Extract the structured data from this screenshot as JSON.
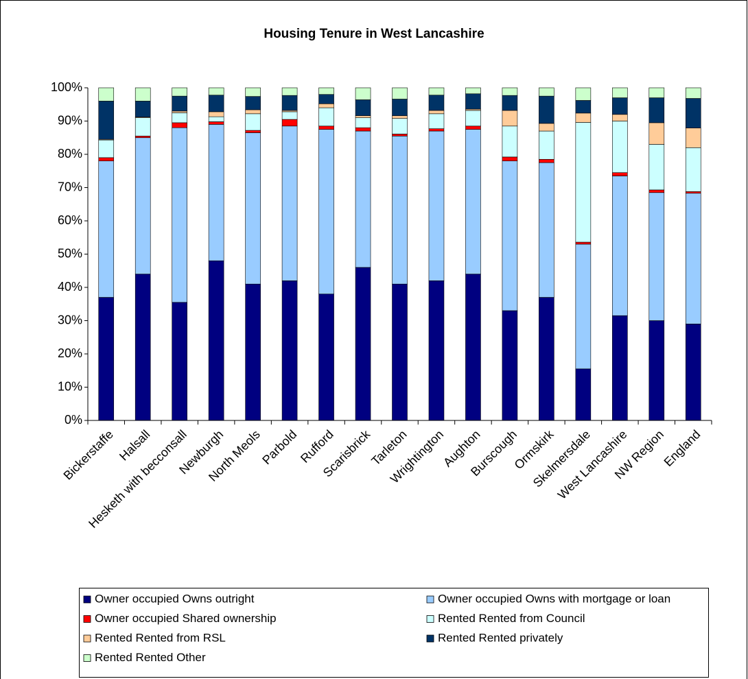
{
  "chart_data": {
    "type": "bar",
    "stacked": true,
    "title": "Housing Tenure in West Lancashire",
    "categories": [
      "Bickerstaffe",
      "Halsall",
      "Hesketh with becconsall",
      "Newburgh",
      "North Meols",
      "Parbold",
      "Rufford",
      "Scarisbrick",
      "Tarleton",
      "Wrightington",
      "Aughton",
      "Burscough",
      "Ormskirk",
      "Skelmersdale",
      "West Lancashire",
      "NW Region",
      "England"
    ],
    "series": [
      {
        "name": "Owner occupied Owns outright",
        "color": "#000080",
        "values": [
          37,
          44,
          35.5,
          48,
          41,
          42,
          38,
          46,
          41,
          42,
          44,
          33,
          37,
          15.5,
          31.5,
          30,
          29
        ]
      },
      {
        "name": "Owner occupied Owns with mortgage or loan",
        "color": "#99ccff",
        "values": [
          41,
          41,
          52.5,
          41,
          45.5,
          46.5,
          49.5,
          41,
          44.5,
          45,
          43.5,
          45,
          40.5,
          37.5,
          42,
          38.5,
          39.3
        ]
      },
      {
        "name": "Owner occupied Shared ownership",
        "color": "#ff0000",
        "values": [
          1,
          0.5,
          1.5,
          0.8,
          0.7,
          2,
          1,
          1,
          0.6,
          0.7,
          1,
          1.2,
          1,
          0.6,
          1,
          0.8,
          0.5
        ]
      },
      {
        "name": "Rented Rented from Council",
        "color": "#ccffff",
        "values": [
          5.3,
          5.5,
          3,
          1.5,
          5,
          2.3,
          5.5,
          3,
          4.7,
          4.5,
          4.7,
          9.3,
          8.5,
          36,
          15.5,
          13.7,
          13.2
        ]
      },
      {
        "name": "Rented Rented from RSL",
        "color": "#ffcc99",
        "values": [
          0.2,
          0.2,
          0.5,
          1.5,
          1.2,
          0.4,
          1.2,
          0.6,
          0.8,
          1,
          0.4,
          4.7,
          2.3,
          2.8,
          2,
          6.5,
          5.9
        ]
      },
      {
        "name": "Rented Rented privately",
        "color": "#003366",
        "values": [
          11.5,
          4.8,
          4.5,
          5,
          4,
          4.5,
          2.8,
          4.8,
          5,
          4.6,
          4.6,
          4.5,
          8.2,
          3.8,
          5,
          7.5,
          8.9
        ]
      },
      {
        "name": "Rented Rented Other",
        "color": "#ccffcc",
        "values": [
          4,
          4,
          2.5,
          2.2,
          2.6,
          2.3,
          2,
          3.6,
          3.4,
          2.2,
          1.8,
          2.3,
          2.5,
          3.8,
          3,
          3,
          3.2
        ]
      }
    ],
    "ylim": [
      0,
      100
    ],
    "yticks": [
      {
        "value": 0,
        "label": "0%"
      },
      {
        "value": 10,
        "label": "10%"
      },
      {
        "value": 20,
        "label": "20%"
      },
      {
        "value": 30,
        "label": "30%"
      },
      {
        "value": 40,
        "label": "40%"
      },
      {
        "value": 50,
        "label": "50%"
      },
      {
        "value": 60,
        "label": "60%"
      },
      {
        "value": 70,
        "label": "70%"
      },
      {
        "value": 80,
        "label": "80%"
      },
      {
        "value": 90,
        "label": "90%"
      },
      {
        "value": 100,
        "label": "100%"
      }
    ],
    "grid": false
  }
}
